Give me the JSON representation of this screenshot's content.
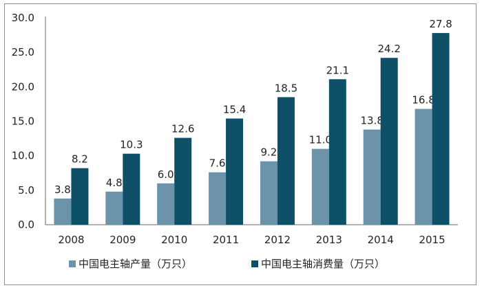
{
  "chart_data": {
    "type": "bar",
    "categories": [
      "2008",
      "2009",
      "2010",
      "2011",
      "2012",
      "2013",
      "2014",
      "2015"
    ],
    "series": [
      {
        "name": "中国电主轴产量（万只）",
        "values": [
          3.8,
          4.8,
          6.0,
          7.6,
          9.2,
          11.0,
          13.8,
          16.8
        ],
        "color": "#6b93a9",
        "labels": [
          "3.8",
          "4.8",
          "6.0",
          "7.6",
          "9.2",
          "11.0",
          "13.8",
          "16.8"
        ]
      },
      {
        "name": "中国电主轴消费量（万只）",
        "values": [
          8.2,
          10.3,
          12.6,
          15.4,
          18.5,
          21.1,
          24.2,
          27.8
        ],
        "color": "#0e5067",
        "labels": [
          "8.2",
          "10.3",
          "12.6",
          "15.4",
          "18.5",
          "21.1",
          "24.2",
          "27.8"
        ]
      }
    ],
    "ylim": [
      0,
      30
    ],
    "yticks": [
      "0.0",
      "5.0",
      "10.0",
      "15.0",
      "20.0",
      "25.0",
      "30.0"
    ],
    "legend_position": "bottom",
    "grid": false
  }
}
